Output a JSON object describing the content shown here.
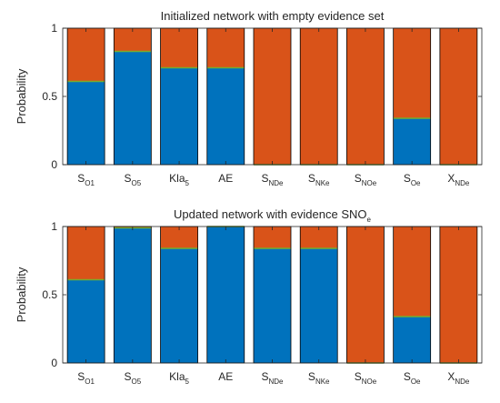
{
  "colors": {
    "background": "#ffffff",
    "axis": "#262626",
    "bar_bottom": "#0072BD",
    "bar_top": "#D95319",
    "boundary": "#77AC30"
  },
  "chart_data": [
    {
      "type": "bar",
      "stacked": true,
      "title": "Initialized network with empty evidence set",
      "ylabel": "Probability",
      "ylim": [
        0,
        1
      ],
      "yticks": [
        "0",
        "0.5",
        "1"
      ],
      "categories": [
        {
          "base": "S",
          "sub": "O1"
        },
        {
          "base": "S",
          "sub": "O5"
        },
        {
          "base": "Kla",
          "sub": "5"
        },
        {
          "base": "AE",
          "sub": ""
        },
        {
          "base": "S",
          "sub": "NDe"
        },
        {
          "base": "S",
          "sub": "NKe"
        },
        {
          "base": "S",
          "sub": "NOe"
        },
        {
          "base": "S",
          "sub": "Oe"
        },
        {
          "base": "X",
          "sub": "NDe"
        }
      ],
      "values": [
        0.61,
        0.83,
        0.71,
        0.71,
        0.0,
        0.0,
        0.0,
        0.34,
        0.0
      ]
    },
    {
      "type": "bar",
      "stacked": true,
      "title": "Updated network with evidence SNO",
      "title_sub": "e",
      "ylabel": "Probability",
      "ylim": [
        0,
        1
      ],
      "yticks": [
        "0",
        "0.5",
        "1"
      ],
      "categories": [
        {
          "base": "S",
          "sub": "O1"
        },
        {
          "base": "S",
          "sub": "O5"
        },
        {
          "base": "Kla",
          "sub": "5"
        },
        {
          "base": "AE",
          "sub": ""
        },
        {
          "base": "S",
          "sub": "NDe"
        },
        {
          "base": "S",
          "sub": "NKe"
        },
        {
          "base": "S",
          "sub": "NOe"
        },
        {
          "base": "S",
          "sub": "Oe"
        },
        {
          "base": "X",
          "sub": "NDe"
        }
      ],
      "values": [
        0.61,
        0.99,
        0.84,
        1.0,
        0.84,
        0.84,
        0.0,
        0.34,
        0.0
      ]
    }
  ]
}
